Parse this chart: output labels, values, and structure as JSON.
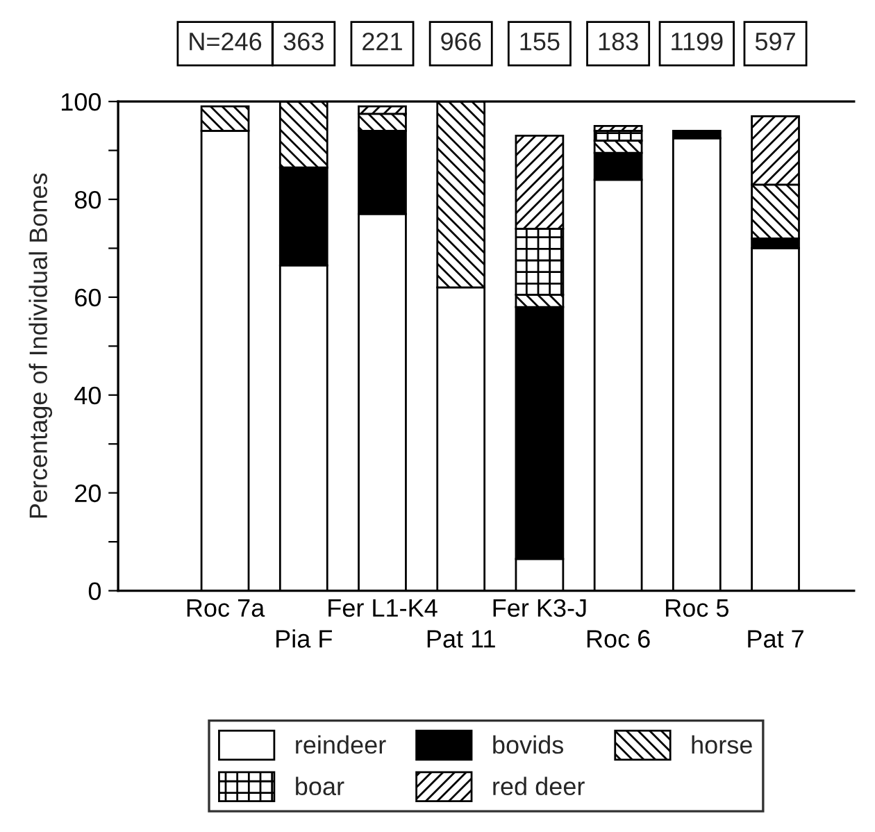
{
  "chart_data": {
    "type": "bar",
    "stacked": true,
    "ylabel": "Percentage of Individual Bones",
    "categories": [
      "Roc 7a",
      "Pia F",
      "Fer L1-K4",
      "Pat 11",
      "Fer K3-J",
      "Roc 6",
      "Roc 5",
      "Pat 7"
    ],
    "series": [
      {
        "name": "reindeer",
        "color": "#ffffff",
        "values": [
          94,
          66.5,
          77,
          62,
          6.5,
          84,
          92.5,
          70
        ]
      },
      {
        "name": "bovids",
        "color": "#000000",
        "values": [
          0,
          20,
          17,
          0,
          51.5,
          5.5,
          1.5,
          2
        ]
      },
      {
        "name": "horse",
        "color": "#000000",
        "values": [
          5,
          13.5,
          3.5,
          38,
          2.5,
          2.5,
          0,
          11
        ]
      },
      {
        "name": "boar",
        "color": "#000000",
        "values": [
          0,
          0,
          0,
          0,
          13.5,
          2,
          0,
          0
        ]
      },
      {
        "name": "red deer",
        "color": "#000000",
        "values": [
          0,
          0,
          1.5,
          0,
          19,
          1,
          0,
          14
        ]
      }
    ],
    "ylim": [
      0,
      100
    ],
    "yticks": [
      0,
      {
        "value": 10,
        "label": null
      },
      20,
      {
        "value": 30,
        "label": null
      },
      40,
      {
        "value": 50,
        "label": null
      },
      60,
      {
        "value": 70,
        "label": null
      },
      80,
      {
        "value": 90,
        "label": null
      },
      100
    ],
    "annotations": [
      "N=246",
      "363",
      "221",
      "966",
      "155",
      "183",
      "1199",
      "597"
    ],
    "legend": "bottom",
    "grid": false
  }
}
